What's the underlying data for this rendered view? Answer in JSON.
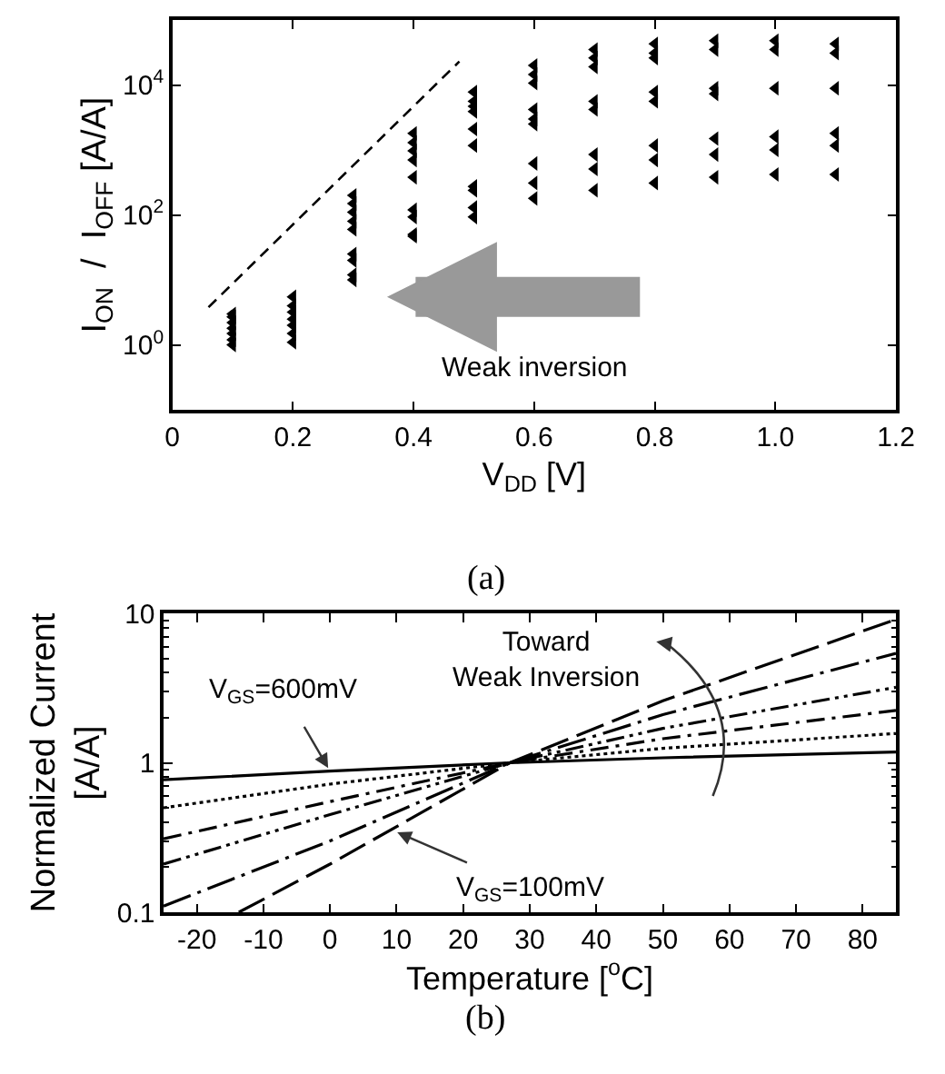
{
  "chart_data": [
    {
      "type": "scatter",
      "xlabel": "V$_{DD}$ [V]",
      "ylabel": "I$_{ON}$  /  I$_{OFF}$ [A/A]",
      "log": "y",
      "xlim": [
        0,
        1.2
      ],
      "xticks": [
        0,
        0.2,
        0.4,
        0.6,
        0.8,
        {
          "value": 1.0,
          "label": "1.0"
        },
        1.2
      ],
      "ylim": [
        0.1,
        100000
      ],
      "yticks": [
        {
          "value": 1,
          "label": "10$^{0}$"
        },
        {
          "value": 100,
          "label": "10$^{2}$"
        },
        {
          "value": 10000,
          "label": "10$^{4}$"
        }
      ],
      "annotations": [
        "(a)",
        "Weak inversion"
      ],
      "series": [
        {
          "type": "scatter",
          "marker": "triangle",
          "color": "#000000",
          "x": [
            0.1,
            0.1,
            0.1,
            0.1,
            0.1,
            0.1,
            0.1,
            0.2,
            0.2,
            0.2,
            0.2,
            0.2,
            0.2,
            0.2,
            0.3,
            0.3,
            0.3,
            0.3,
            0.3,
            0.3,
            0.3,
            0.3,
            0.3,
            0.4,
            0.4,
            0.4,
            0.4,
            0.4,
            0.4,
            0.4,
            0.4,
            0.4,
            0.5,
            0.5,
            0.5,
            0.5,
            0.5,
            0.5,
            0.5,
            0.5,
            0.5,
            0.5,
            0.6,
            0.6,
            0.6,
            0.6,
            0.6,
            0.6,
            0.6,
            0.6,
            0.6,
            0.7,
            0.7,
            0.7,
            0.7,
            0.7,
            0.7,
            0.7,
            0.7,
            0.8,
            0.8,
            0.8,
            0.8,
            0.8,
            0.8,
            0.8,
            0.8,
            0.9,
            0.9,
            0.9,
            0.9,
            0.9,
            0.9,
            0.9,
            1.0,
            1.0,
            1.0,
            1.0,
            1.0,
            1.0,
            1.1,
            1.1,
            1.1,
            1.1,
            1.1,
            1.1
          ],
          "values": [
            1.0,
            1.2,
            1.5,
            1.8,
            2.2,
            2.7,
            3.0,
            1.1,
            1.5,
            2,
            2.5,
            3.2,
            4,
            5.5,
            200,
            150,
            110,
            80,
            60,
            25,
            20,
            12,
            10,
            1800,
            1300,
            970,
            700,
            380,
            120,
            93,
            50,
            47,
            7800,
            5600,
            4700,
            3900,
            2100,
            1170,
            275,
            240,
            130,
            93,
            20000,
            14500,
            10700,
            4200,
            3000,
            2500,
            620,
            310,
            180,
            35000,
            26000,
            19000,
            5600,
            4200,
            850,
            510,
            240,
            43000,
            31000,
            26000,
            7800,
            5600,
            1170,
            700,
            310,
            48000,
            35000,
            8900,
            7300,
            1500,
            850,
            380,
            48000,
            35000,
            8900,
            1600,
            1000,
            420,
            43000,
            31000,
            8900,
            1800,
            1170,
            420
          ]
        },
        {
          "type": "line",
          "color": "#000000",
          "line_style": "dashed",
          "x": [
            0.06,
            0.476
          ],
          "values": [
            3.8,
            23000
          ]
        }
      ]
    },
    {
      "type": "line",
      "xlabel": "Temperature [$^{o}$C]",
      "ylabel": "Normalized Current\n[A/A]",
      "log": "y",
      "xlim": [
        -25,
        85
      ],
      "xticks": [
        -20,
        -10,
        0,
        10,
        20,
        30,
        40,
        50,
        60,
        70,
        80
      ],
      "ylim": [
        0.1,
        10
      ],
      "yticks": [
        0.1,
        1,
        10
      ],
      "annotations": [
        "(b)",
        {
          "text": "V$_{GS}$=600mV",
          "x": 0,
          "y": 0.88
        },
        {
          "text": "V$_{GS}$=100mV",
          "x": 9.6,
          "y": 0.35
        },
        "Toward\nWeak Inversion"
      ],
      "series": [
        {
          "color": "#000000",
          "line_style": "solid",
          "x": [
            -25,
            0,
            27,
            50,
            85
          ],
          "values": [
            0.77,
            0.88,
            1.0,
            1.08,
            1.18
          ]
        },
        {
          "color": "#000000",
          "line_style": "dotted",
          "x": [
            -25,
            0,
            27,
            50,
            85
          ],
          "values": [
            0.5,
            0.72,
            1.0,
            1.25,
            1.57
          ]
        },
        {
          "color": "#000000",
          "line_style": "dashdot",
          "x": [
            -25,
            0,
            27,
            50,
            85
          ],
          "values": [
            0.31,
            0.55,
            1.0,
            1.45,
            2.24
          ]
        },
        {
          "color": "#000000",
          "line_style": "dashdotdot",
          "x": [
            -25,
            0,
            27,
            50,
            85
          ],
          "values": [
            0.21,
            0.45,
            1.0,
            1.7,
            3.2
          ]
        },
        {
          "color": "#000000",
          "line_style": "longdashdot",
          "x": [
            -25,
            0,
            27,
            50,
            85
          ],
          "values": [
            0.11,
            0.3,
            1.0,
            2.1,
            5.4
          ]
        },
        {
          "color": "#000000",
          "line_style": "longdash",
          "x": [
            -13.7,
            0,
            27,
            50,
            85
          ],
          "values": [
            0.1,
            0.21,
            1.0,
            2.6,
            9.1
          ]
        }
      ]
    }
  ]
}
